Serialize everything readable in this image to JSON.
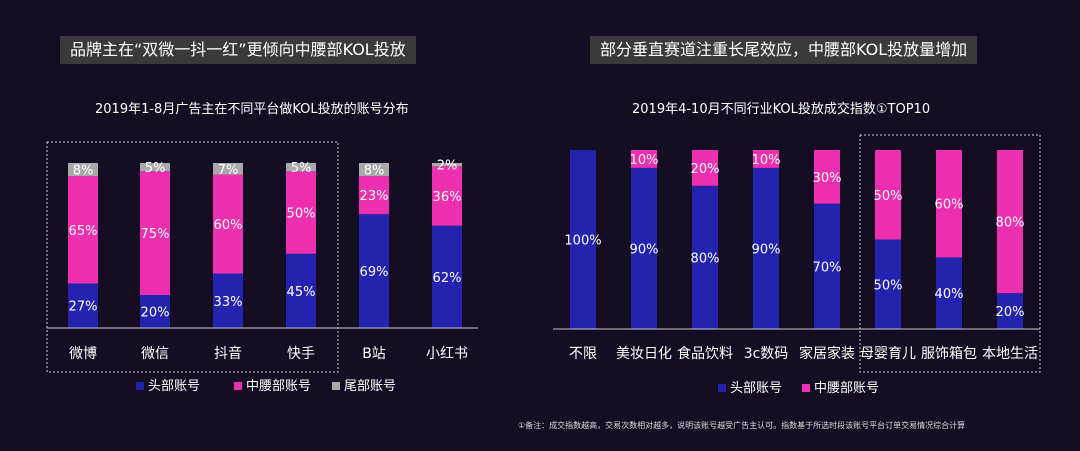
{
  "colors": {
    "head": "#2323b0",
    "mid": "#ee2fb0",
    "tail": "#a9a9a9",
    "axis": "#c8c8c8",
    "dash": "#cfcfcf"
  },
  "left_title": "品牌主在“双微一抖一红”更倾向中腰部KOL投放",
  "right_title": "部分垂直赛道注重长尾效应，中腰部KOL投放量增加",
  "footnote": "①备注：成交指数越高，交易次数相对越多，说明该账号越受广告主认可。指数基于所选时段该账号平台订单交易情况综合计算",
  "chart_data": [
    {
      "type": "bar",
      "stacked": true,
      "title": "2019年1-8月广告主在不同平台做KOL投放的账号分布",
      "categories": [
        "微博",
        "微信",
        "抖音",
        "快手",
        "B站",
        "小红书"
      ],
      "series": [
        {
          "name": "头部账号",
          "color_key": "head",
          "values": [
            27,
            20,
            33,
            45,
            69,
            62
          ]
        },
        {
          "name": "中腰部账号",
          "color_key": "mid",
          "values": [
            65,
            75,
            60,
            50,
            23,
            36
          ]
        },
        {
          "name": "尾部账号",
          "color_key": "tail",
          "values": [
            8,
            5,
            7,
            5,
            8,
            2
          ]
        }
      ],
      "unit": "%",
      "ylim": [
        0,
        100
      ],
      "legend": "bottom",
      "highlight_categories": [
        "微博",
        "微信",
        "抖音",
        "快手"
      ]
    },
    {
      "type": "bar",
      "stacked": true,
      "title": "2019年4-10月不同行业KOL投放成交指数①TOP10",
      "categories": [
        "不限",
        "美妆日化",
        "食品饮料",
        "3c数码",
        "家居家装",
        "母婴育儿",
        "服饰箱包",
        "本地生活"
      ],
      "series": [
        {
          "name": "头部账号",
          "color_key": "head",
          "values": [
            100,
            90,
            80,
            90,
            70,
            50,
            40,
            20
          ]
        },
        {
          "name": "中腰部账号",
          "color_key": "mid",
          "values": [
            0,
            10,
            20,
            10,
            30,
            50,
            60,
            80
          ]
        }
      ],
      "unit": "%",
      "ylim": [
        0,
        100
      ],
      "legend": "bottom",
      "highlight_categories": [
        "母婴育儿",
        "服饰箱包",
        "本地生活"
      ]
    }
  ]
}
